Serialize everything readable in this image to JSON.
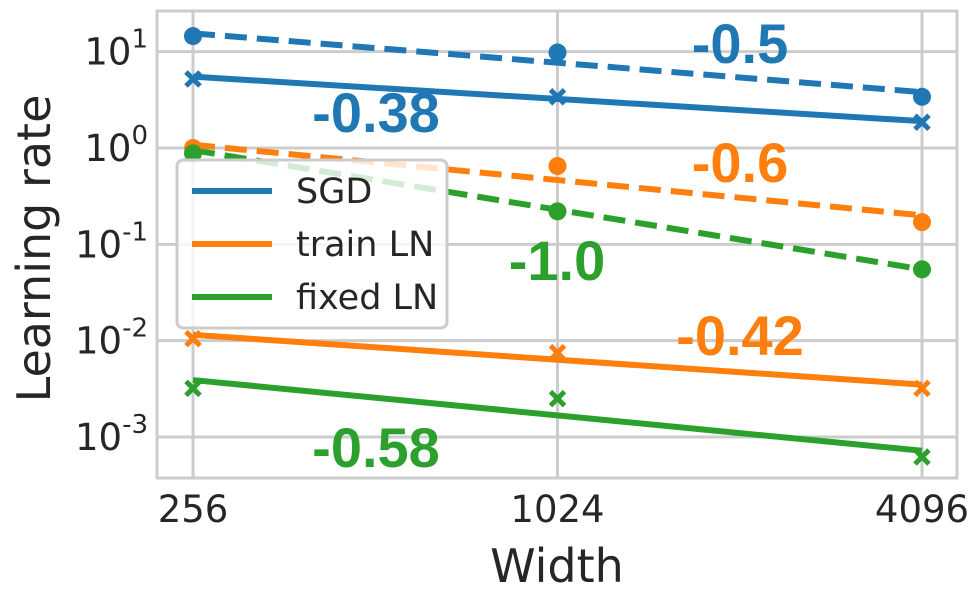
{
  "chart_data": {
    "type": "line",
    "xscale": "log2",
    "yscale": "log10",
    "x": [
      256,
      1024,
      4096
    ],
    "xticks": [
      "256",
      "1024",
      "4096"
    ],
    "yticks": [
      {
        "value": 0.001,
        "base": "10",
        "exp": "-3"
      },
      {
        "value": 0.01,
        "base": "10",
        "exp": "-2"
      },
      {
        "value": 0.1,
        "base": "10",
        "exp": "-1"
      },
      {
        "value": 1,
        "base": "10",
        "exp": "0"
      },
      {
        "value": 10,
        "base": "10",
        "exp": "1"
      }
    ],
    "xlabel": "Width",
    "ylabel": "Learning rate",
    "ylim": [
      0.0004,
      25
    ],
    "grid": true,
    "legend_position": "center-left",
    "series": [
      {
        "name": "SGD",
        "color": "#1f77b4",
        "style": "dashed",
        "marker": "circle",
        "points": [
          14.5,
          9.8,
          3.4
        ],
        "fit": [
          15.5,
          3.8
        ],
        "slope_label": "-0.5",
        "legend": false
      },
      {
        "name": "SGD",
        "color": "#1f77b4",
        "style": "solid",
        "marker": "x",
        "points": [
          5.2,
          3.4,
          1.85
        ],
        "fit": [
          5.5,
          1.9
        ],
        "slope_label": "-0.38",
        "legend": true
      },
      {
        "name": "train LN",
        "color": "#ff7f0e",
        "style": "dashed",
        "marker": "circle",
        "points": [
          1.0,
          0.65,
          0.17
        ],
        "fit": [
          1.08,
          0.2
        ],
        "slope_label": "-0.6",
        "legend": false
      },
      {
        "name": "train LN",
        "color": "#ff7f0e",
        "style": "solid",
        "marker": "x",
        "points": [
          0.0105,
          0.0075,
          0.0032
        ],
        "fit": [
          0.0115,
          0.0035
        ],
        "slope_label": "-0.42",
        "legend": true
      },
      {
        "name": "fixed LN",
        "color": "#2ca02c",
        "style": "dashed",
        "marker": "circle",
        "points": [
          0.88,
          0.22,
          0.055
        ],
        "fit": [
          0.95,
          0.055
        ],
        "slope_label": "-1.0",
        "legend": false
      },
      {
        "name": "fixed LN",
        "color": "#2ca02c",
        "style": "solid",
        "marker": "x",
        "points": [
          0.0032,
          0.0025,
          0.00062
        ],
        "fit": [
          0.0039,
          0.00072
        ],
        "slope_label": "-0.58",
        "legend": true
      }
    ]
  }
}
